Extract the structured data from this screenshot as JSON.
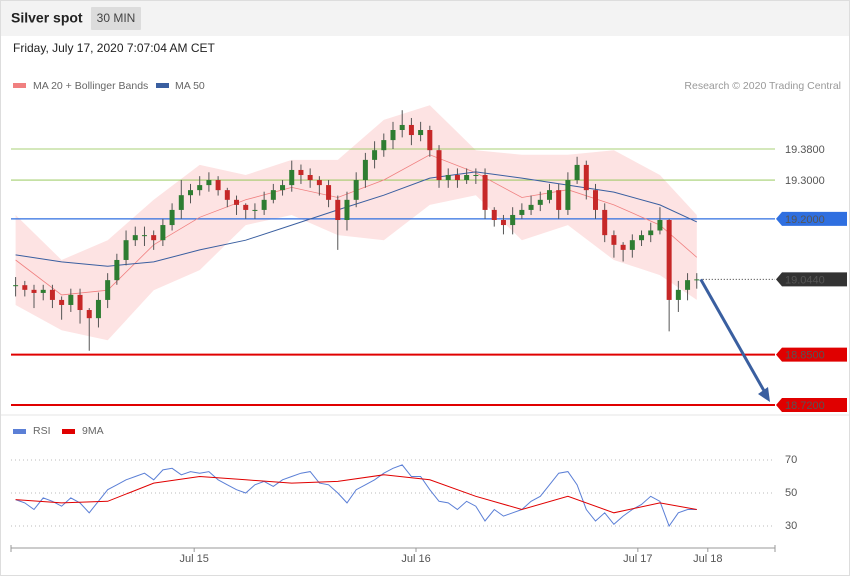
{
  "header": {
    "title": "Silver spot",
    "badge": "30 MIN",
    "timestamp": "Friday, July 17, 2020 7:07:04 AM CET",
    "credit": "Research © 2020 Trading Central"
  },
  "chart_data": [
    {
      "type": "candlestick",
      "xlim": [
        -0.5,
        82.5
      ],
      "ylim": [
        18.69,
        19.52
      ],
      "candles": {
        "close": [
          19.029,
          19.017,
          19.009,
          19.017,
          18.991,
          18.978,
          19.004,
          18.965,
          18.944,
          18.991,
          19.042,
          19.094,
          19.145,
          19.158,
          19.158,
          19.145,
          19.184,
          19.223,
          19.261,
          19.274,
          19.287,
          19.3,
          19.274,
          19.249,
          19.236,
          19.223,
          19.223,
          19.249,
          19.274,
          19.287,
          19.326,
          19.313,
          19.3,
          19.287,
          19.249,
          19.197,
          19.249,
          19.3,
          19.352,
          19.377,
          19.403,
          19.429,
          19.442,
          19.416,
          19.429,
          19.377,
          19.3,
          19.313,
          19.3,
          19.313,
          19.313,
          19.223,
          19.197,
          19.184,
          19.21,
          19.223,
          19.236,
          19.249,
          19.274,
          19.223,
          19.3,
          19.339,
          19.274,
          19.223,
          19.158,
          19.133,
          19.12,
          19.145,
          19.158,
          19.17,
          19.197,
          18.991,
          19.017,
          19.042,
          19.044
        ],
        "high": [
          19.05,
          19.04,
          19.03,
          19.03,
          19.03,
          19.0,
          19.02,
          19.02,
          18.97,
          19.01,
          19.06,
          19.11,
          19.17,
          19.18,
          19.18,
          19.17,
          19.2,
          19.24,
          19.3,
          19.29,
          19.31,
          19.32,
          19.31,
          19.28,
          19.26,
          19.24,
          19.24,
          19.27,
          19.29,
          19.3,
          19.35,
          19.34,
          19.33,
          19.31,
          19.3,
          19.26,
          19.27,
          19.32,
          19.37,
          19.4,
          19.42,
          19.45,
          19.48,
          19.46,
          19.45,
          19.44,
          19.39,
          19.33,
          19.33,
          19.33,
          19.33,
          19.33,
          19.23,
          19.21,
          19.23,
          19.24,
          19.26,
          19.27,
          19.29,
          19.29,
          19.32,
          19.36,
          19.35,
          19.29,
          19.24,
          19.17,
          19.14,
          19.16,
          19.17,
          19.19,
          19.23,
          19.2,
          19.04,
          19.06,
          19.06
        ],
        "low": [
          19.0,
          19.0,
          18.97,
          18.99,
          18.97,
          18.94,
          18.96,
          18.93,
          18.86,
          18.92,
          18.97,
          19.03,
          19.08,
          19.13,
          19.13,
          19.12,
          19.13,
          19.17,
          19.2,
          19.24,
          19.26,
          19.27,
          19.26,
          19.23,
          19.21,
          19.2,
          19.2,
          19.21,
          19.24,
          19.26,
          19.27,
          19.29,
          19.28,
          19.26,
          19.23,
          19.12,
          19.17,
          19.23,
          19.28,
          19.33,
          19.36,
          19.38,
          19.41,
          19.39,
          19.4,
          19.36,
          19.28,
          19.28,
          19.28,
          19.29,
          19.29,
          19.2,
          19.18,
          19.16,
          19.16,
          19.2,
          19.21,
          19.22,
          19.24,
          19.2,
          19.21,
          19.29,
          19.25,
          19.2,
          19.14,
          19.1,
          19.09,
          19.1,
          19.13,
          19.14,
          19.16,
          18.91,
          18.96,
          18.99,
          19.02
        ],
        "up_color": "#2e7d32",
        "down_color": "#c62828"
      },
      "series": [
        {
          "name": "MA 20 + Bollinger Bands",
          "color": "#f08080",
          "band_color": "#fde3e3",
          "x": [
            0,
            5,
            10,
            15,
            20,
            25,
            30,
            35,
            40,
            45,
            50,
            55,
            60,
            65,
            70,
            74
          ],
          "values": [
            19.094,
            19.004,
            19.016,
            19.133,
            19.204,
            19.249,
            19.281,
            19.255,
            19.3,
            19.365,
            19.319,
            19.255,
            19.275,
            19.236,
            19.184,
            19.101
          ],
          "upper": [
            19.21,
            19.094,
            19.145,
            19.249,
            19.339,
            19.313,
            19.352,
            19.352,
            19.455,
            19.493,
            19.377,
            19.365,
            19.365,
            19.377,
            19.313,
            19.21
          ],
          "lower": [
            18.978,
            18.913,
            18.887,
            19.016,
            19.068,
            19.184,
            19.21,
            19.158,
            19.145,
            19.236,
            19.261,
            19.145,
            19.184,
            19.094,
            19.055,
            18.991
          ]
        },
        {
          "name": "MA 50",
          "color": "#3a5fa0",
          "x": [
            0,
            5,
            10,
            15,
            20,
            25,
            30,
            35,
            40,
            45,
            50,
            55,
            60,
            65,
            70,
            74
          ],
          "values": [
            19.107,
            19.089,
            19.078,
            19.089,
            19.12,
            19.145,
            19.184,
            19.223,
            19.261,
            19.305,
            19.321,
            19.305,
            19.287,
            19.269,
            19.236,
            19.192
          ]
        }
      ],
      "levels": [
        {
          "value": 19.38,
          "label": "19.3800",
          "color": "#8bc34a",
          "boxed": false
        },
        {
          "value": 19.3,
          "label": "19.3000",
          "color": "#8bc34a",
          "boxed": false
        },
        {
          "value": 19.2,
          "label": "19.2000",
          "color": "#2f6fe0",
          "boxed": true
        },
        {
          "value": 19.044,
          "label": "19.0440",
          "color": "#333333",
          "boxed": true
        },
        {
          "value": 18.85,
          "label": "18.8500",
          "color": "#e00000",
          "boxed": true
        },
        {
          "value": 18.72,
          "label": "18.7200",
          "color": "#e00000",
          "boxed": true
        }
      ],
      "arrow_color": "#3a5fa0"
    },
    {
      "type": "line",
      "xlim": [
        -0.5,
        82.5
      ],
      "ylim": [
        18,
        80
      ],
      "yticks": [
        30,
        50,
        70
      ],
      "grid": true,
      "xticks": [
        {
          "value": 19.4,
          "label": "Jul 15"
        },
        {
          "value": 43.5,
          "label": "Jul 16"
        },
        {
          "value": 67.6,
          "label": "Jul 17"
        },
        {
          "value": 75.2,
          "label": "Jul 18"
        }
      ],
      "series": [
        {
          "name": "RSI",
          "color": "#5b7fd6",
          "x": [
            0,
            1,
            2,
            3,
            4,
            5,
            6,
            7,
            8,
            9,
            10,
            11,
            12,
            13,
            14,
            15,
            16,
            17,
            18,
            19,
            20,
            21,
            22,
            23,
            24,
            25,
            26,
            27,
            28,
            29,
            30,
            31,
            32,
            33,
            34,
            35,
            36,
            37,
            38,
            39,
            40,
            41,
            42,
            43,
            44,
            45,
            46,
            47,
            48,
            49,
            50,
            51,
            52,
            53,
            54,
            55,
            56,
            57,
            58,
            59,
            60,
            61,
            62,
            63,
            64,
            65,
            66,
            67,
            68,
            69,
            70,
            71,
            72,
            73,
            74
          ],
          "values": [
            46,
            44,
            40,
            47,
            45,
            42,
            47,
            44,
            38,
            45,
            52,
            55,
            58,
            60,
            62,
            58,
            64,
            65,
            61,
            63,
            62,
            63,
            58,
            55,
            52,
            50,
            55,
            57,
            54,
            58,
            60,
            62,
            63,
            56,
            55,
            50,
            44,
            52,
            55,
            58,
            62,
            65,
            67,
            60,
            60,
            52,
            45,
            44,
            40,
            45,
            42,
            33,
            40,
            36,
            38,
            40,
            45,
            48,
            55,
            62,
            63,
            55,
            40,
            33,
            38,
            31,
            36,
            40,
            43,
            48,
            45,
            30,
            38,
            40,
            40
          ]
        },
        {
          "name": "9MA",
          "color": "#e00000",
          "x": [
            0,
            5,
            10,
            15,
            20,
            25,
            30,
            35,
            40,
            45,
            50,
            55,
            60,
            65,
            70,
            74
          ],
          "values": [
            46,
            44,
            45,
            56,
            60,
            58,
            56,
            57,
            61,
            58,
            48,
            40,
            48,
            38,
            44,
            40
          ]
        }
      ]
    }
  ]
}
